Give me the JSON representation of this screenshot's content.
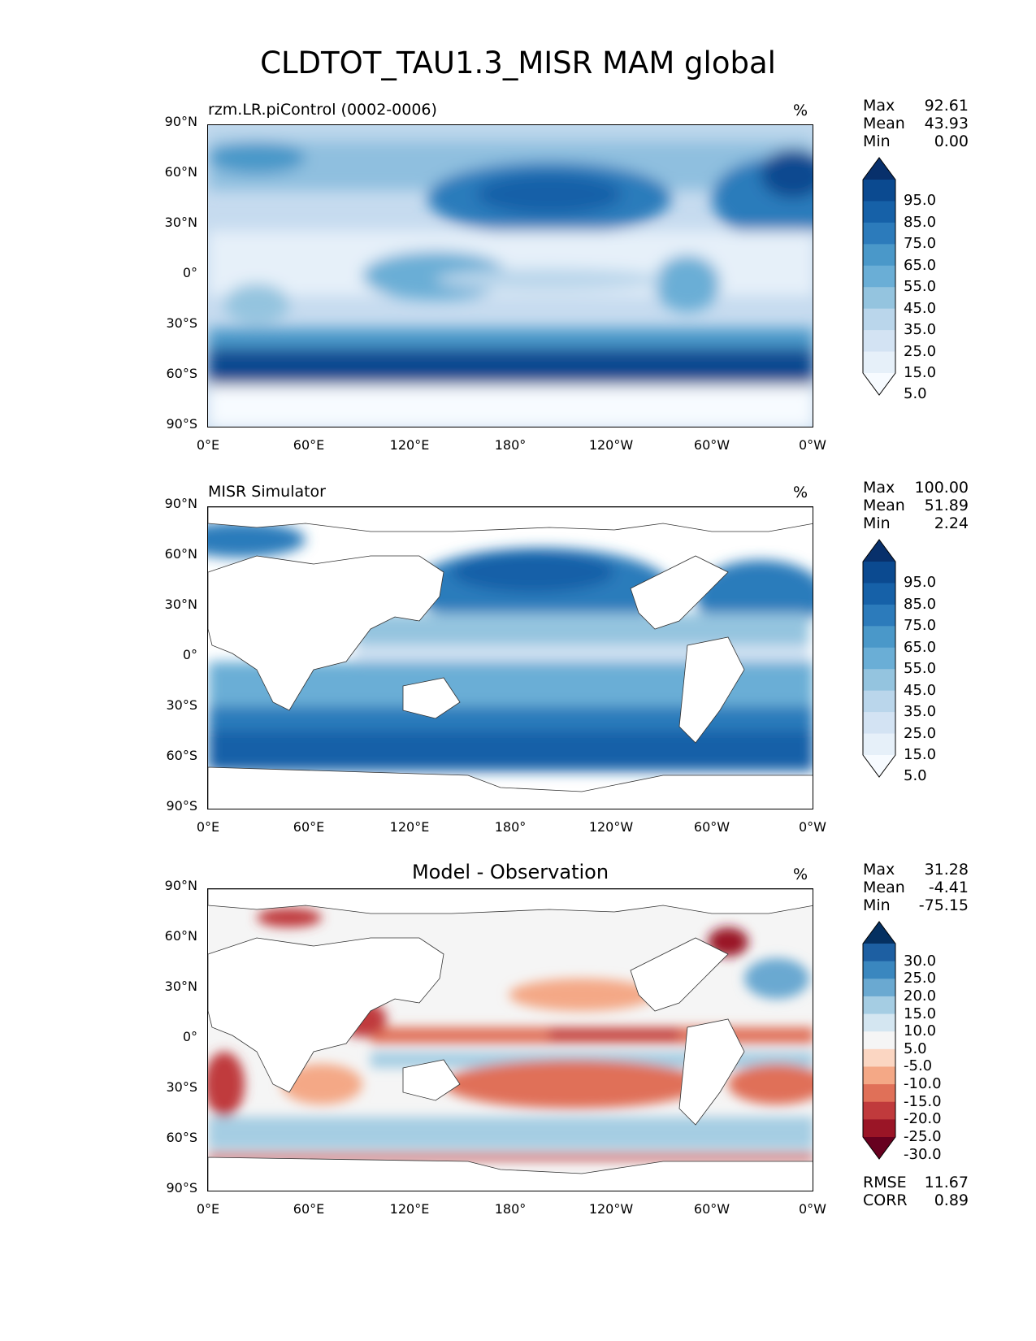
{
  "title": "CLDTOT_TAU1.3_MISR MAM global",
  "chart_data": [
    {
      "type": "heatmap",
      "title": "rzm.LR.piControl (0002-0006)",
      "units": "%",
      "xlabels": [
        "0°E",
        "60°E",
        "120°E",
        "180°",
        "120°W",
        "60°W",
        "0°W"
      ],
      "ylabels": [
        "90°N",
        "60°N",
        "30°N",
        "0°",
        "30°S",
        "60°S",
        "90°S"
      ],
      "stats": {
        "max_label": "Max",
        "max": "92.61",
        "mean_label": "Mean",
        "mean": "43.93",
        "min_label": "Min",
        "min": "0.00"
      },
      "colorbar": {
        "levels": [
          "95.0",
          "85.0",
          "75.0",
          "65.0",
          "55.0",
          "45.0",
          "35.0",
          "25.0",
          "15.0",
          "5.0"
        ],
        "colors": [
          "#08306b",
          "#0b4a90",
          "#1661a8",
          "#2c7bbb",
          "#4a98c9",
          "#6aaed6",
          "#94c4df",
          "#bad6eb",
          "#d3e3f3",
          "#e6f0f9",
          "#f7fbff"
        ]
      }
    },
    {
      "type": "heatmap",
      "title": "MISR Simulator",
      "units": "%",
      "xlabels": [
        "0°E",
        "60°E",
        "120°E",
        "180°",
        "120°W",
        "60°W",
        "0°W"
      ],
      "ylabels": [
        "90°N",
        "60°N",
        "30°N",
        "0°",
        "30°S",
        "60°S",
        "90°S"
      ],
      "stats": {
        "max_label": "Max",
        "max": "100.00",
        "mean_label": "Mean",
        "mean": "51.89",
        "min_label": "Min",
        "min": "2.24"
      },
      "colorbar": {
        "levels": [
          "95.0",
          "85.0",
          "75.0",
          "65.0",
          "55.0",
          "45.0",
          "35.0",
          "25.0",
          "15.0",
          "5.0"
        ],
        "colors": [
          "#08306b",
          "#0b4a90",
          "#1661a8",
          "#2c7bbb",
          "#4a98c9",
          "#6aaed6",
          "#94c4df",
          "#bad6eb",
          "#d3e3f3",
          "#e6f0f9",
          "#f7fbff"
        ]
      }
    },
    {
      "type": "heatmap",
      "title": "Model - Observation",
      "units": "%",
      "xlabels": [
        "0°E",
        "60°E",
        "120°E",
        "180°",
        "120°W",
        "60°W",
        "0°W"
      ],
      "ylabels": [
        "90°N",
        "60°N",
        "30°N",
        "0°",
        "30°S",
        "60°S",
        "90°S"
      ],
      "stats": {
        "max_label": "Max",
        "max": "31.28",
        "mean_label": "Mean",
        "mean": "-4.41",
        "min_label": "Min",
        "min": "-75.15"
      },
      "metrics": {
        "rmse_label": "RMSE",
        "rmse": "11.67",
        "corr_label": "CORR",
        "corr": "0.89"
      },
      "colorbar": {
        "levels": [
          "30.0",
          "25.0",
          "20.0",
          "15.0",
          "10.0",
          "5.0",
          "-5.0",
          "-10.0",
          "-15.0",
          "-20.0",
          "-25.0",
          "-30.0"
        ],
        "colors": [
          "#053061",
          "#1d5fa2",
          "#3a87bf",
          "#6aa9d1",
          "#a5cde3",
          "#d4e6f1",
          "#f5f5f5",
          "#fbd6c2",
          "#f4a886",
          "#e07058",
          "#c03a3c",
          "#9a1526",
          "#67001f"
        ]
      }
    }
  ]
}
